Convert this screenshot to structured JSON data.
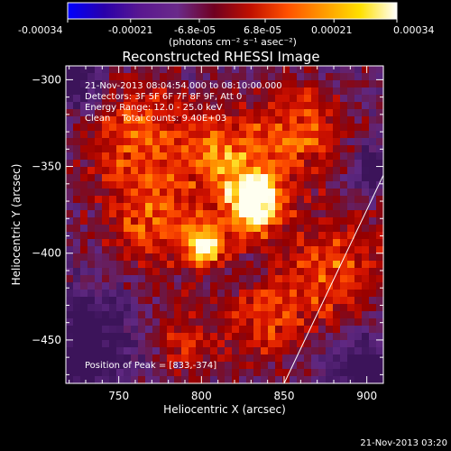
{
  "colorbar": {
    "tick_labels": [
      "-0.00034",
      "-0.00021",
      "-6.8e-05",
      "6.8e-05",
      "0.00021",
      "0.00034"
    ],
    "tick_values": [
      -0.00034,
      -0.00021,
      -6.8e-05,
      6.8e-05,
      0.00021,
      0.00034
    ],
    "range": [
      -0.00034,
      0.00034
    ],
    "units_label": "(photons cm⁻² s⁻¹ asec⁻²)"
  },
  "annotations": {
    "time_range": "21-Nov-2013 08:04:54.000 to 08:10:00.000",
    "detectors": "Detectors: 3F 5F 6F 7F 8F 9F, Att 0",
    "energy_range": "Energy Range: 12.0 - 25.0 keV",
    "clean_info": "Clean    Total counts: 9.40E+03",
    "peak_position": "Position of Peak = [833,-374]"
  },
  "timestamp": "21-Nov-2013 03:20",
  "colors": {
    "colormap": [
      "#0000ff",
      "#2a00aa",
      "#5a1890",
      "#6a2a8a",
      "#700020",
      "#c01000",
      "#ff5000",
      "#ff9a00",
      "#ffe000",
      "#ffffff"
    ],
    "axis": "#ffffff",
    "limb_line": "#ffffff"
  },
  "chart_data": {
    "type": "heatmap",
    "title": "Reconstructed RHESSI Image",
    "xlabel": "Heliocentric X (arcsec)",
    "ylabel": "Heliocentric Y (arcsec)",
    "xlim": [
      718,
      910
    ],
    "ylim": [
      -475,
      -292
    ],
    "x_ticks": [
      750,
      800,
      850,
      900
    ],
    "y_ticks": [
      -300,
      -350,
      -400,
      -450
    ],
    "x_tick_labels": [
      "750",
      "800",
      "850",
      "900"
    ],
    "y_tick_labels": [
      "−300",
      "−350",
      "−400",
      "−450"
    ],
    "peak": {
      "x": 833,
      "y": -374
    },
    "sources": [
      {
        "x": 833,
        "y": -372,
        "sigma": 12,
        "amp": 1.0
      },
      {
        "x": 802,
        "y": -395,
        "sigma": 9,
        "amp": 0.85
      },
      {
        "x": 815,
        "y": -345,
        "sigma": 18,
        "amp": 0.55
      },
      {
        "x": 860,
        "y": -330,
        "sigma": 20,
        "amp": 0.45
      },
      {
        "x": 760,
        "y": -330,
        "sigma": 22,
        "amp": 0.5
      },
      {
        "x": 770,
        "y": -380,
        "sigma": 20,
        "amp": 0.45
      },
      {
        "x": 880,
        "y": -410,
        "sigma": 22,
        "amp": 0.45
      },
      {
        "x": 840,
        "y": -440,
        "sigma": 18,
        "amp": 0.4
      },
      {
        "x": 790,
        "y": -450,
        "sigma": 16,
        "amp": 0.3
      }
    ],
    "background_low_regions": [
      {
        "x": 730,
        "y": -455,
        "sigma": 22
      },
      {
        "x": 725,
        "y": -300,
        "sigma": 14
      },
      {
        "x": 900,
        "y": -470,
        "sigma": 16
      },
      {
        "x": 905,
        "y": -350,
        "sigma": 10
      }
    ],
    "limb_line": {
      "from": {
        "x": 850,
        "y": -475
      },
      "to": {
        "x": 910,
        "y": -355
      }
    },
    "grid": false
  }
}
